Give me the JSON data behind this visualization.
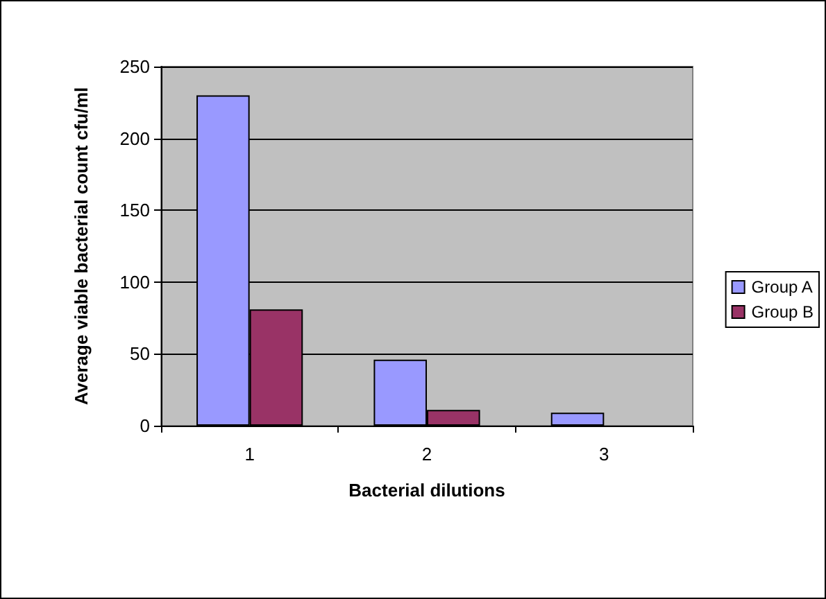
{
  "chart_data": {
    "type": "bar",
    "xlabel": "Bacterial dilutions",
    "ylabel": "Average viable bacterial count cfu/ml",
    "categories": [
      "1",
      "2",
      "3"
    ],
    "series": [
      {
        "name": "Group A",
        "color": "#9999ff",
        "values": [
          230,
          46,
          9
        ]
      },
      {
        "name": "Group B",
        "color": "#993366",
        "values": [
          81,
          11,
          null
        ]
      }
    ],
    "ylim": [
      0,
      250
    ],
    "yticks": [
      0,
      50,
      100,
      150,
      200,
      250
    ],
    "grid": "y",
    "legend": "right"
  }
}
